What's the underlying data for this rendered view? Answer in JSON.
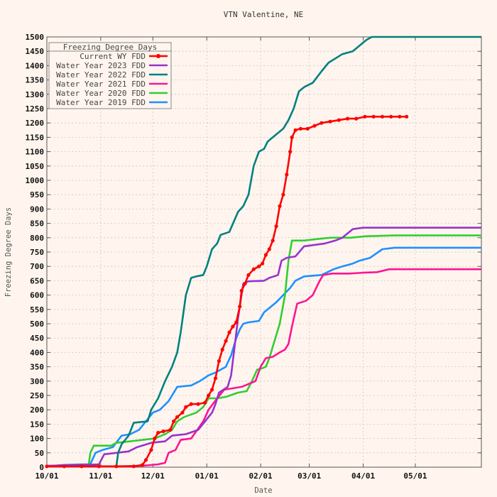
{
  "chart_data": {
    "type": "line",
    "title": "VTN Valentine, NE",
    "xlabel": "Date",
    "ylabel": "Freezing Degree Days",
    "ylim": [
      0,
      1500
    ],
    "y_ticks": [
      0,
      50,
      100,
      150,
      200,
      250,
      300,
      350,
      400,
      450,
      500,
      550,
      600,
      650,
      700,
      750,
      800,
      850,
      900,
      950,
      1000,
      1050,
      1100,
      1150,
      1200,
      1250,
      1300,
      1350,
      1400,
      1450,
      1500
    ],
    "x_ticks": [
      {
        "label": "10/01",
        "day": 0
      },
      {
        "label": "11/01",
        "day": 31
      },
      {
        "label": "12/01",
        "day": 61
      },
      {
        "label": "01/01",
        "day": 92
      },
      {
        "label": "02/01",
        "day": 123
      },
      {
        "label": "03/01",
        "day": 151
      },
      {
        "label": "04/01",
        "day": 182
      },
      {
        "label": "05/01",
        "day": 212
      }
    ],
    "xlim_days": [
      0,
      250
    ],
    "grid": true,
    "legend": {
      "title": "Freezing Degree Days",
      "position": "top-left"
    },
    "series": [
      {
        "name": "Current WY FDD",
        "color": "#ff0000",
        "markers": true,
        "points": [
          [
            0,
            3
          ],
          [
            10,
            3
          ],
          [
            20,
            3
          ],
          [
            30,
            3
          ],
          [
            40,
            3
          ],
          [
            50,
            3
          ],
          [
            55,
            8
          ],
          [
            57,
            25
          ],
          [
            60,
            60
          ],
          [
            62,
            100
          ],
          [
            64,
            120
          ],
          [
            67,
            125
          ],
          [
            71,
            130
          ],
          [
            73,
            160
          ],
          [
            75,
            175
          ],
          [
            78,
            190
          ],
          [
            80,
            210
          ],
          [
            83,
            220
          ],
          [
            87,
            220
          ],
          [
            91,
            225
          ],
          [
            93,
            250
          ],
          [
            95,
            270
          ],
          [
            97,
            310
          ],
          [
            99,
            370
          ],
          [
            101,
            410
          ],
          [
            103,
            440
          ],
          [
            105,
            470
          ],
          [
            107,
            490
          ],
          [
            109,
            505
          ],
          [
            111,
            560
          ],
          [
            112,
            615
          ],
          [
            114,
            640
          ],
          [
            116,
            670
          ],
          [
            119,
            690
          ],
          [
            122,
            700
          ],
          [
            124,
            710
          ],
          [
            126,
            740
          ],
          [
            128,
            760
          ],
          [
            130,
            790
          ],
          [
            132,
            840
          ],
          [
            134,
            910
          ],
          [
            136,
            950
          ],
          [
            138,
            1020
          ],
          [
            140,
            1100
          ],
          [
            141,
            1150
          ],
          [
            143,
            1175
          ],
          [
            146,
            1180
          ],
          [
            150,
            1180
          ],
          [
            154,
            1190
          ],
          [
            158,
            1200
          ],
          [
            163,
            1205
          ],
          [
            168,
            1210
          ],
          [
            173,
            1215
          ],
          [
            178,
            1215
          ],
          [
            183,
            1222
          ],
          [
            188,
            1222
          ],
          [
            193,
            1222
          ],
          [
            198,
            1222
          ],
          [
            203,
            1222
          ],
          [
            207,
            1222
          ]
        ]
      },
      {
        "name": "Water Year 2023 FDD",
        "color": "#9932cc",
        "markers": false,
        "points": [
          [
            0,
            5
          ],
          [
            20,
            8
          ],
          [
            30,
            10
          ],
          [
            33,
            45
          ],
          [
            40,
            50
          ],
          [
            47,
            55
          ],
          [
            52,
            70
          ],
          [
            60,
            85
          ],
          [
            68,
            90
          ],
          [
            72,
            110
          ],
          [
            80,
            115
          ],
          [
            87,
            130
          ],
          [
            91,
            160
          ],
          [
            95,
            190
          ],
          [
            97,
            220
          ],
          [
            99,
            260
          ],
          [
            104,
            280
          ],
          [
            106,
            320
          ],
          [
            108,
            420
          ],
          [
            110,
            520
          ],
          [
            113,
            640
          ],
          [
            116,
            648
          ],
          [
            125,
            650
          ],
          [
            128,
            660
          ],
          [
            133,
            670
          ],
          [
            135,
            720
          ],
          [
            138,
            730
          ],
          [
            143,
            735
          ],
          [
            148,
            770
          ],
          [
            160,
            780
          ],
          [
            166,
            790
          ],
          [
            170,
            800
          ],
          [
            176,
            830
          ],
          [
            182,
            835
          ],
          [
            200,
            835
          ],
          [
            250,
            835
          ]
        ]
      },
      {
        "name": "Water Year 2022 FDD",
        "color": "#008080",
        "markers": false,
        "points": [
          [
            0,
            3
          ],
          [
            30,
            3
          ],
          [
            40,
            3
          ],
          [
            41,
            50
          ],
          [
            43,
            80
          ],
          [
            47,
            110
          ],
          [
            50,
            155
          ],
          [
            58,
            160
          ],
          [
            60,
            200
          ],
          [
            64,
            240
          ],
          [
            68,
            300
          ],
          [
            72,
            350
          ],
          [
            75,
            400
          ],
          [
            77,
            470
          ],
          [
            80,
            600
          ],
          [
            83,
            660
          ],
          [
            86,
            665
          ],
          [
            90,
            670
          ],
          [
            92,
            700
          ],
          [
            95,
            760
          ],
          [
            98,
            780
          ],
          [
            100,
            810
          ],
          [
            105,
            820
          ],
          [
            110,
            890
          ],
          [
            113,
            910
          ],
          [
            116,
            950
          ],
          [
            119,
            1050
          ],
          [
            122,
            1100
          ],
          [
            125,
            1110
          ],
          [
            127,
            1135
          ],
          [
            130,
            1150
          ],
          [
            134,
            1170
          ],
          [
            136,
            1180
          ],
          [
            139,
            1210
          ],
          [
            142,
            1250
          ],
          [
            145,
            1310
          ],
          [
            148,
            1325
          ],
          [
            153,
            1340
          ],
          [
            158,
            1380
          ],
          [
            162,
            1410
          ],
          [
            166,
            1425
          ],
          [
            170,
            1440
          ],
          [
            176,
            1450
          ],
          [
            180,
            1470
          ],
          [
            184,
            1490
          ],
          [
            187,
            1500
          ],
          [
            250,
            1500
          ]
        ]
      },
      {
        "name": "Water Year 2021 FDD",
        "color": "#ff1493",
        "markers": false,
        "points": [
          [
            0,
            3
          ],
          [
            30,
            3
          ],
          [
            40,
            3
          ],
          [
            55,
            5
          ],
          [
            64,
            10
          ],
          [
            68,
            15
          ],
          [
            70,
            50
          ],
          [
            74,
            60
          ],
          [
            77,
            95
          ],
          [
            83,
            100
          ],
          [
            90,
            160
          ],
          [
            93,
            200
          ],
          [
            98,
            240
          ],
          [
            102,
            270
          ],
          [
            107,
            275
          ],
          [
            112,
            280
          ],
          [
            120,
            300
          ],
          [
            123,
            350
          ],
          [
            126,
            380
          ],
          [
            130,
            385
          ],
          [
            134,
            400
          ],
          [
            137,
            410
          ],
          [
            139,
            430
          ],
          [
            141,
            490
          ],
          [
            144,
            570
          ],
          [
            149,
            580
          ],
          [
            153,
            600
          ],
          [
            157,
            650
          ],
          [
            159,
            670
          ],
          [
            164,
            675
          ],
          [
            174,
            675
          ],
          [
            182,
            678
          ],
          [
            190,
            680
          ],
          [
            197,
            690
          ],
          [
            250,
            690
          ]
        ]
      },
      {
        "name": "Water Year 2020 FDD",
        "color": "#32cd32",
        "markers": false,
        "points": [
          [
            0,
            3
          ],
          [
            24,
            5
          ],
          [
            25,
            50
          ],
          [
            27,
            75
          ],
          [
            37,
            75
          ],
          [
            40,
            85
          ],
          [
            48,
            90
          ],
          [
            55,
            95
          ],
          [
            62,
            100
          ],
          [
            68,
            115
          ],
          [
            72,
            130
          ],
          [
            75,
            160
          ],
          [
            79,
            175
          ],
          [
            86,
            190
          ],
          [
            90,
            210
          ],
          [
            93,
            240
          ],
          [
            98,
            240
          ],
          [
            103,
            245
          ],
          [
            110,
            260
          ],
          [
            115,
            265
          ],
          [
            118,
            300
          ],
          [
            121,
            340
          ],
          [
            124,
            345
          ],
          [
            126,
            350
          ],
          [
            128,
            380
          ],
          [
            130,
            420
          ],
          [
            134,
            500
          ],
          [
            137,
            600
          ],
          [
            139,
            720
          ],
          [
            141,
            790
          ],
          [
            148,
            790
          ],
          [
            155,
            795
          ],
          [
            163,
            800
          ],
          [
            175,
            800
          ],
          [
            183,
            805
          ],
          [
            200,
            808
          ],
          [
            250,
            808
          ]
        ]
      },
      {
        "name": "Water Year 2019 FDD",
        "color": "#1e90ff",
        "markers": false,
        "points": [
          [
            0,
            3
          ],
          [
            10,
            8
          ],
          [
            20,
            10
          ],
          [
            25,
            10
          ],
          [
            28,
            50
          ],
          [
            32,
            60
          ],
          [
            38,
            70
          ],
          [
            43,
            110
          ],
          [
            48,
            115
          ],
          [
            53,
            130
          ],
          [
            57,
            160
          ],
          [
            61,
            190
          ],
          [
            65,
            200
          ],
          [
            70,
            230
          ],
          [
            75,
            280
          ],
          [
            83,
            285
          ],
          [
            88,
            300
          ],
          [
            93,
            320
          ],
          [
            97,
            330
          ],
          [
            103,
            350
          ],
          [
            106,
            390
          ],
          [
            109,
            450
          ],
          [
            111,
            480
          ],
          [
            113,
            500
          ],
          [
            116,
            505
          ],
          [
            122,
            510
          ],
          [
            125,
            540
          ],
          [
            129,
            560
          ],
          [
            132,
            575
          ],
          [
            136,
            600
          ],
          [
            140,
            625
          ],
          [
            143,
            650
          ],
          [
            148,
            665
          ],
          [
            158,
            670
          ],
          [
            165,
            690
          ],
          [
            170,
            700
          ],
          [
            176,
            710
          ],
          [
            180,
            720
          ],
          [
            186,
            730
          ],
          [
            193,
            760
          ],
          [
            200,
            765
          ],
          [
            250,
            765
          ]
        ]
      }
    ]
  }
}
